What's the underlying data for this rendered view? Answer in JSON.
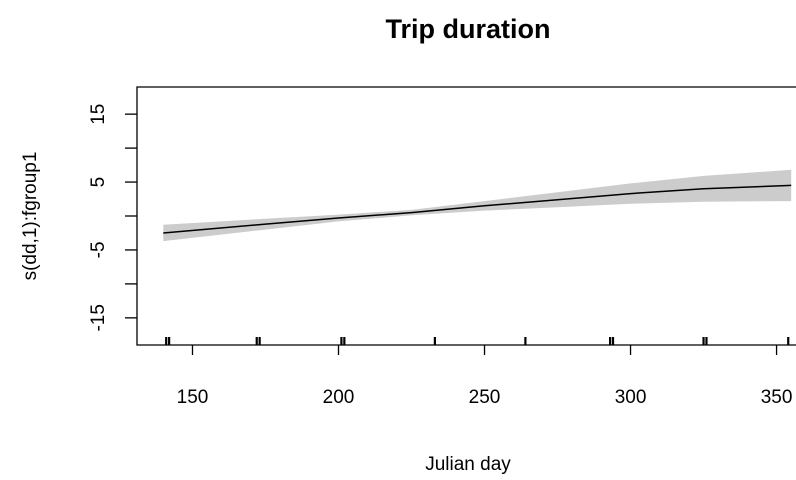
{
  "chart_data": {
    "type": "line",
    "title": "Trip duration",
    "xlabel": "Julian day",
    "ylabel": "s(dd,1):fgroup1",
    "xlim": [
      131,
      357
    ],
    "ylim": [
      -19,
      19
    ],
    "x_ticks": [
      150,
      200,
      250,
      300,
      350
    ],
    "y_ticks": [
      -15,
      -5,
      5,
      15
    ],
    "y_minor_ticks": [
      -10,
      0,
      10
    ],
    "grid": false,
    "colors": {
      "line": "#000000",
      "band": "#cccccc"
    },
    "rug": [
      141,
      142,
      172,
      173,
      201,
      202,
      233,
      264,
      293,
      294,
      325,
      326,
      354
    ],
    "series": [
      {
        "x": [
          140,
          175,
          200,
          225,
          250,
          275,
          300,
          325,
          355
        ],
        "y": [
          -2.5,
          -1.2,
          -0.3,
          0.5,
          1.5,
          2.4,
          3.3,
          4.0,
          4.5
        ],
        "lower": [
          -3.7,
          -2.0,
          -0.8,
          0.1,
          0.8,
          1.3,
          1.8,
          2.1,
          2.2
        ],
        "upper": [
          -1.3,
          -0.4,
          0.2,
          0.9,
          2.2,
          3.5,
          4.8,
          5.9,
          6.8
        ]
      }
    ]
  }
}
